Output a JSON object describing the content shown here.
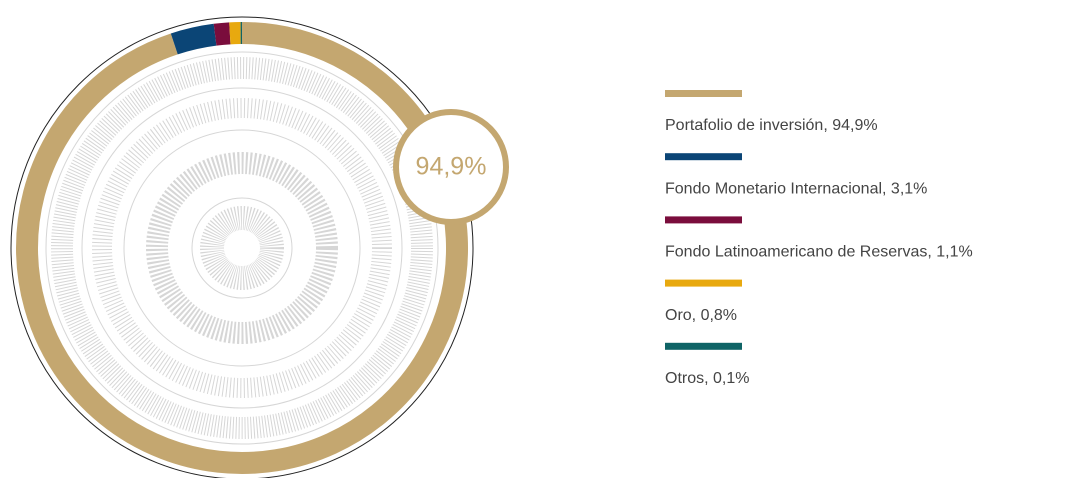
{
  "chart_data": {
    "type": "donut",
    "categories": [
      "Portafolio de inversión, 94,9%",
      "Fondo Monetario Internacional, 3,1%",
      "Fondo Latinoamericano de Reservas, 1,1%",
      "Oro, 0,8%",
      "Otros, 0,1%"
    ],
    "values": [
      94.9,
      3.1,
      1.1,
      0.8,
      0.1
    ],
    "colors": [
      "#c4a770",
      "#0b4576",
      "#7a0d3c",
      "#e8a90f",
      "#0f6466"
    ],
    "center_label": "94,9%"
  }
}
